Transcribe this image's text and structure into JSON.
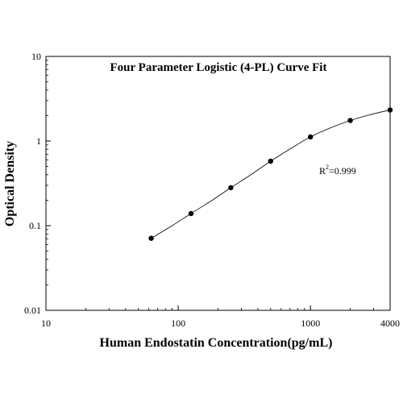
{
  "chart_data": {
    "type": "scatter",
    "title": "Four Parameter Logistic (4-PL) Curve Fit",
    "xlabel": "Human Endostatin Concentration(pg/mL)",
    "ylabel": "Optical Density",
    "x_scale": "log",
    "y_scale": "log",
    "xlim": [
      10,
      4000
    ],
    "ylim": [
      0.01,
      10
    ],
    "x_ticks": [
      {
        "value": 10,
        "label": "10"
      },
      {
        "value": 100,
        "label": "100"
      },
      {
        "value": 1000,
        "label": "1000"
      },
      {
        "value": 4000,
        "label": "4000"
      }
    ],
    "y_ticks": [
      {
        "value": 0.01,
        "label": "0.01"
      },
      {
        "value": 0.1,
        "label": "0.1"
      },
      {
        "value": 1,
        "label": "1"
      },
      {
        "value": 10,
        "label": "10"
      }
    ],
    "grid": false,
    "points": [
      {
        "x": 62.5,
        "y": 0.071
      },
      {
        "x": 125,
        "y": 0.139
      },
      {
        "x": 250,
        "y": 0.281
      },
      {
        "x": 500,
        "y": 0.578
      },
      {
        "x": 1000,
        "y": 1.12
      },
      {
        "x": 2000,
        "y": 1.75
      },
      {
        "x": 4000,
        "y": 2.33
      }
    ],
    "fit_curve": {
      "model": "4-PL",
      "x": [
        62.5,
        90,
        125,
        180,
        250,
        350,
        500,
        700,
        1000,
        1400,
        2000,
        2800,
        4000
      ],
      "y": [
        0.071,
        0.1,
        0.139,
        0.199,
        0.281,
        0.395,
        0.578,
        0.805,
        1.12,
        1.42,
        1.75,
        2.04,
        2.33
      ]
    },
    "annotation": {
      "base": "R",
      "superscript": "2",
      "text": "=0.999"
    }
  }
}
